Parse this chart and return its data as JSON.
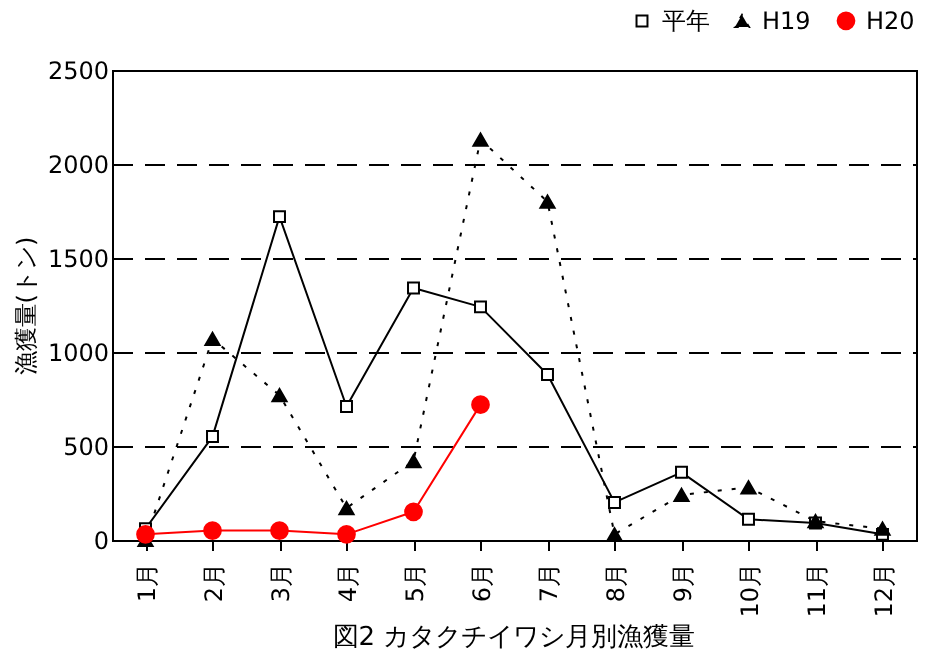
{
  "chart_data": {
    "type": "line",
    "title": "図2  カタクチイワシ月別漁獲量",
    "ylabel": "漁獲量(トン)",
    "categories": [
      "1月",
      "2月",
      "3月",
      "4月",
      "5月",
      "6月",
      "7月",
      "8月",
      "9月",
      "10月",
      "11月",
      "12月"
    ],
    "series": [
      {
        "name": "平年",
        "color": "#000000",
        "marker": "square",
        "line_style": "solid",
        "values": [
          60,
          550,
          1720,
          710,
          1340,
          1240,
          880,
          200,
          360,
          110,
          90,
          30
        ]
      },
      {
        "name": "H19",
        "color": "#000000",
        "marker": "triangle",
        "line_style": "dotted",
        "values": [
          0,
          1070,
          770,
          170,
          420,
          2130,
          1800,
          30,
          240,
          280,
          100,
          60
        ]
      },
      {
        "name": "H20",
        "color": "#ff0000",
        "marker": "circle",
        "line_style": "solid",
        "values": [
          30,
          50,
          50,
          30,
          150,
          720,
          null,
          null,
          null,
          null,
          null,
          null
        ]
      }
    ],
    "ylim": [
      0,
      2500
    ],
    "yticks": [
      0,
      500,
      1000,
      1500,
      2000,
      2500
    ],
    "grid": "y",
    "legend": "top right"
  }
}
